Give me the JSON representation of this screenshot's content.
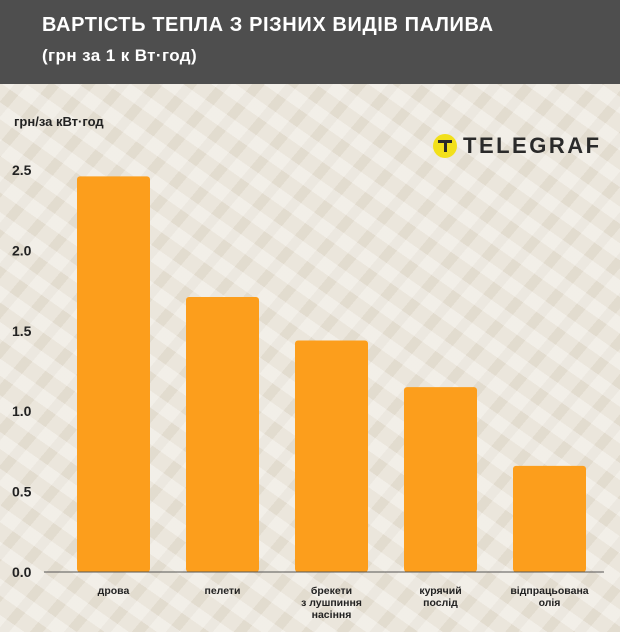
{
  "header": {
    "title": "ВАРТІСТЬ ТЕПЛА З РІЗНИХ ВИДІВ ПАЛИВА",
    "subtitle": "(грн за 1 к Вт·год)"
  },
  "brand": {
    "name": "TELEGRAF",
    "icon": "telegraf-logo-icon"
  },
  "colors": {
    "bar": "#fc9e1c",
    "header_bg": "#4e4e4e",
    "brand_yellow": "#f2e01a"
  },
  "chart_data": {
    "type": "bar",
    "ylabel": "грн/за кВт·год",
    "ylim": [
      0,
      2.7
    ],
    "yticks": [
      "0.0",
      "0.5",
      "1.0",
      "1.5",
      "2.0",
      "2.5"
    ],
    "categories": [
      [
        "дрова"
      ],
      [
        "пелети"
      ],
      [
        "брекети",
        "з лушпиння",
        "насіння"
      ],
      [
        "курячий",
        "послід"
      ],
      [
        "відпрацьована",
        "олія"
      ]
    ],
    "values": [
      2.46,
      1.71,
      1.44,
      1.15,
      0.66
    ],
    "grid": false,
    "legend": "none"
  }
}
